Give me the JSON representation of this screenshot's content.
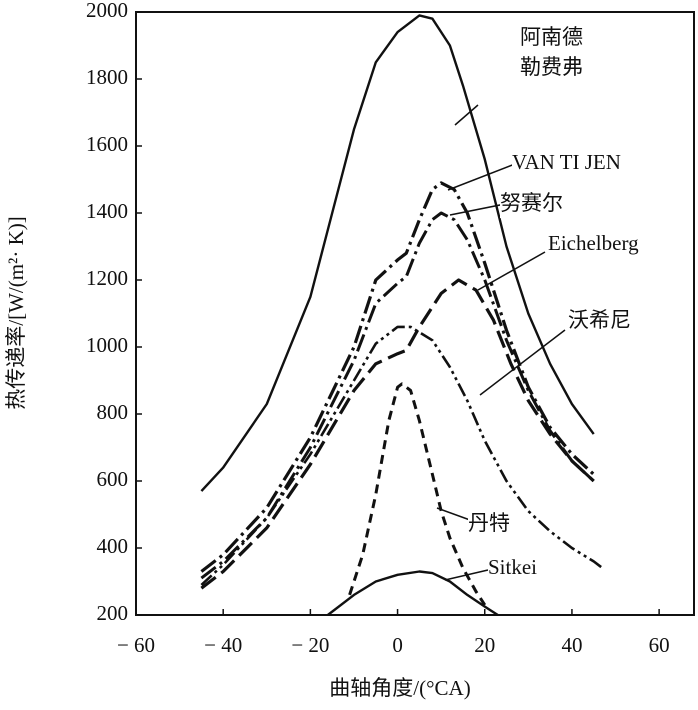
{
  "chart_data": {
    "type": "line",
    "x_label": "曲轴角度/(°CA)",
    "y_label": "热传递率/[W/(m²· K)]",
    "xlim": [
      -60,
      68
    ],
    "xticks": [
      {
        "value": -60,
        "label": "− 60"
      },
      {
        "value": -40,
        "label": "− 40"
      },
      {
        "value": -20,
        "label": "− 20"
      },
      0,
      20,
      40,
      60
    ],
    "ylim": [
      200,
      2000
    ],
    "yticks": [
      200,
      400,
      600,
      800,
      1000,
      1200,
      1400,
      1600,
      1800,
      2000
    ],
    "grid": false,
    "series": [
      {
        "name": "阿南德 勒费弗",
        "color": "#111111",
        "dash": "solid",
        "x": [
          -45,
          -40,
          -30,
          -20,
          -15,
          -10,
          -5,
          0,
          2,
          5,
          8,
          12,
          15,
          20,
          25,
          30,
          35,
          40,
          45
        ],
        "values": [
          570,
          640,
          830,
          1150,
          1400,
          1650,
          1850,
          1940,
          1960,
          1990,
          1980,
          1900,
          1780,
          1560,
          1300,
          1100,
          950,
          830,
          740
        ]
      },
      {
        "name": "VAN TI JEN",
        "color": "#111111",
        "dash": "dash-dot",
        "x": [
          -45,
          -40,
          -30,
          -20,
          -10,
          -5,
          0,
          2,
          5,
          8,
          10,
          13,
          16,
          20,
          25,
          30,
          35,
          40,
          45
        ],
        "values": [
          330,
          380,
          520,
          730,
          1000,
          1200,
          1260,
          1280,
          1380,
          1470,
          1490,
          1470,
          1400,
          1250,
          1050,
          880,
          760,
          680,
          620
        ]
      },
      {
        "name": "努赛尔",
        "color": "#111111",
        "dash": "dash-dot",
        "x": [
          -45,
          -40,
          -30,
          -20,
          -10,
          -5,
          0,
          2,
          5,
          8,
          10,
          13,
          16,
          20,
          25,
          30,
          35,
          40,
          45
        ],
        "values": [
          310,
          360,
          490,
          700,
          960,
          1130,
          1190,
          1210,
          1310,
          1380,
          1400,
          1380,
          1320,
          1200,
          1020,
          870,
          750,
          660,
          600
        ]
      },
      {
        "name": "Eichelberg",
        "color": "#111111",
        "dash": "long-dash",
        "x": [
          -45,
          -40,
          -30,
          -20,
          -10,
          -5,
          0,
          2,
          5,
          10,
          14,
          18,
          22,
          26,
          30,
          35,
          40,
          45
        ],
        "values": [
          280,
          330,
          460,
          650,
          870,
          950,
          980,
          990,
          1060,
          1160,
          1200,
          1170,
          1080,
          950,
          840,
          740,
          660,
          600
        ]
      },
      {
        "name": "沃希尼",
        "color": "#111111",
        "dash": "dash-dot-dot",
        "x": [
          -45,
          -40,
          -30,
          -20,
          -10,
          -5,
          0,
          3,
          8,
          12,
          16,
          20,
          25,
          30,
          35,
          40,
          45,
          47
        ],
        "values": [
          290,
          350,
          490,
          680,
          900,
          1010,
          1060,
          1060,
          1020,
          940,
          840,
          720,
          600,
          510,
          450,
          400,
          360,
          340
        ]
      },
      {
        "name": "丹特",
        "color": "#111111",
        "dash": "short-dash",
        "x": [
          -11,
          -8,
          -5,
          -2,
          0,
          1,
          3,
          5,
          8,
          10,
          12,
          15,
          18,
          20
        ],
        "values": [
          260,
          380,
          560,
          780,
          880,
          890,
          870,
          780,
          620,
          510,
          430,
          340,
          270,
          230
        ]
      },
      {
        "name": "Sitkei",
        "color": "#111111",
        "dash": "solid",
        "x": [
          -16,
          -10,
          -5,
          0,
          5,
          8,
          12,
          16,
          20,
          23
        ],
        "values": [
          200,
          260,
          300,
          320,
          330,
          325,
          300,
          260,
          225,
          200
        ]
      }
    ]
  }
}
